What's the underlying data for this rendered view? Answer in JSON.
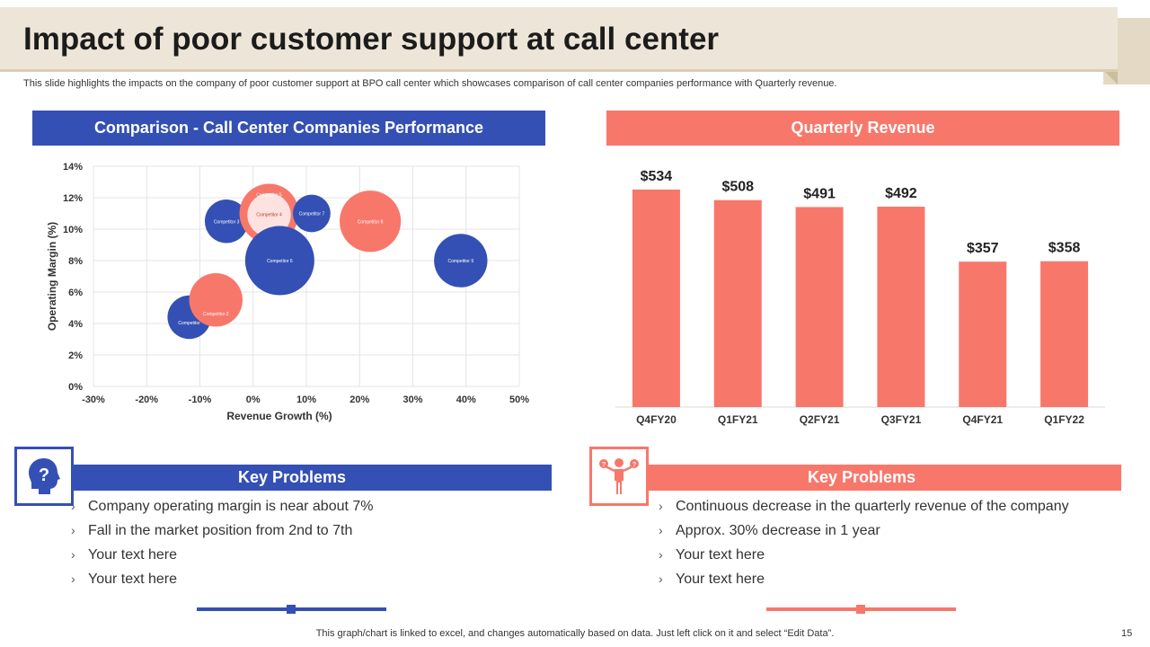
{
  "slide": {
    "title": "Impact of poor customer support at call center",
    "subtitle": "This slide highlights the impacts on the company of poor customer support at BPO call center which showcases comparison of call center companies performance with Quarterly revenue.",
    "footer": "This graph/chart is linked to excel, and changes automatically based on data. Just left click on it and select “Edit Data”.",
    "page_number": "15"
  },
  "colors": {
    "blue": "#3450b4",
    "coral": "#f8776b",
    "beige": "#ede6d8"
  },
  "left_panel": {
    "header": "Comparison - Call Center Companies Performance",
    "key_problems_title": "Key Problems",
    "icon": "idea-head-icon",
    "bullets": [
      "Company operating margin is near about 7%",
      "Fall in the market position from 2nd to 7th",
      "Your text here",
      "Your text here"
    ]
  },
  "right_panel": {
    "header": "Quarterly Revenue",
    "key_problems_title": "Key Problems",
    "icon": "balance-person-icon",
    "bullets": [
      "Continuous decrease in the quarterly revenue of the company",
      "Approx. 30% decrease in 1 year",
      "Your text here",
      "Your text here"
    ]
  },
  "chart_data": [
    {
      "type": "scatter",
      "title": "Comparison - Call Center Companies Performance",
      "xlabel": "Revenue Growth (%)",
      "ylabel": "Operating Margin (%)",
      "xlim": [
        -30,
        50
      ],
      "ylim": [
        0,
        14
      ],
      "x_ticks": [
        "-30%",
        "-20%",
        "-10%",
        "0%",
        "10%",
        "20%",
        "30%",
        "40%",
        "50%"
      ],
      "y_ticks": [
        "0%",
        "2%",
        "4%",
        "6%",
        "8%",
        "10%",
        "12%",
        "14%"
      ],
      "grid": true,
      "points": [
        {
          "label": "Competitor",
          "x": -12,
          "y": 4.4,
          "size": 1.1,
          "color": "blue"
        },
        {
          "label": "Competitor 2",
          "x": -7,
          "y": 5.5,
          "size": 1.35,
          "color": "coral"
        },
        {
          "label": "Competitor 3",
          "x": -5,
          "y": 10.5,
          "size": 1.1,
          "color": "blue"
        },
        {
          "label": "Competitor 5",
          "x": 3,
          "y": 11.0,
          "size": 1.5,
          "color": "coral"
        },
        {
          "label": "Competitor 4",
          "x": 3,
          "y": 10.9,
          "size": 1.1,
          "color": "coral-light"
        },
        {
          "label": "Competitor 7",
          "x": 11,
          "y": 11.0,
          "size": 0.95,
          "color": "blue"
        },
        {
          "label": "Competitor 6",
          "x": 5,
          "y": 8.0,
          "size": 1.75,
          "color": "blue"
        },
        {
          "label": "Competitor 8",
          "x": 22,
          "y": 10.5,
          "size": 1.55,
          "color": "coral"
        },
        {
          "label": "Competitor 9",
          "x": 39,
          "y": 8.0,
          "size": 1.35,
          "color": "blue"
        }
      ]
    },
    {
      "type": "bar",
      "title": "Quarterly Revenue",
      "categories": [
        "Q4FY20",
        "Q1FY21",
        "Q2FY21",
        "Q3FY21",
        "Q4FY21",
        "Q1FY22"
      ],
      "values": [
        534,
        508,
        491,
        492,
        357,
        358
      ],
      "value_labels": [
        "$534",
        "$508",
        "$491",
        "$492",
        "$357",
        "$358"
      ],
      "ylim": [
        0,
        600
      ]
    }
  ]
}
